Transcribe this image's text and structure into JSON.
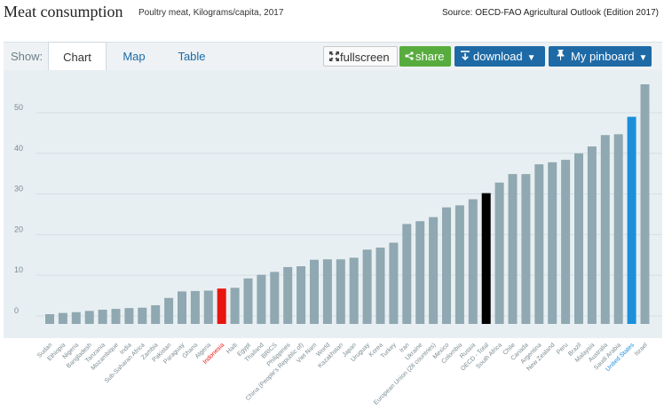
{
  "header": {
    "title": "Meat consumption",
    "subtitle": "Poultry meat, Kilograms/capita, 2017",
    "source": "Source: OECD-FAO Agricultural Outlook (Edition 2017)"
  },
  "toolbar": {
    "show_label": "Show:",
    "tabs": [
      {
        "label": "Chart",
        "active": true
      },
      {
        "label": "Map",
        "active": false
      },
      {
        "label": "Table",
        "active": false
      }
    ],
    "fullscreen_label": "fullscreen",
    "share_label": "share",
    "download_label": "download",
    "pinboard_label": "My pinboard",
    "icons": {
      "fullscreen": "expand-arrows-icon",
      "share": "share-nodes-icon",
      "download": "download-arrow-icon",
      "pinboard": "pushpin-icon",
      "dropdown": "caret-down-icon"
    }
  },
  "colors": {
    "bar": "#8fa8b1",
    "highlight_red": "#e8140f",
    "highlight_black": "#000000",
    "highlight_blue": "#1c8fd9",
    "plot_background": "#e8eff2",
    "label": "#7a8a92",
    "label_red": "#e8140f",
    "label_blue": "#1c8fd9",
    "brand_blue": "#1e6aa6",
    "share_green": "#58ac3e"
  },
  "chart_data": {
    "type": "bar",
    "title": "Meat consumption",
    "subtitle": "Poultry meat, Kilograms/capita, 2017",
    "ylim": [
      -2,
      57
    ],
    "yticks": [
      0,
      10,
      20,
      30,
      40,
      50
    ],
    "grid": true,
    "categories": [
      "Sudan",
      "Ethiopia",
      "Nigeria",
      "Bangladesh",
      "Tanzania",
      "Mozambique",
      "India",
      "Sub-Saharan Africa",
      "Zambia",
      "Pakistan",
      "Paraguay",
      "Ghana",
      "Algeria",
      "Indonesia",
      "Haiti",
      "Egypt",
      "Thailand",
      "BRICS",
      "Philippines",
      "China (People's Republic of)",
      "Viet Nam",
      "World",
      "Kazakhstan",
      "Japan",
      "Uruguay",
      "Korea",
      "Turkey",
      "Iran",
      "Ukraine",
      "European Union (28 countries)",
      "Mexico",
      "Colombia",
      "Russia",
      "OECD - Total",
      "South Africa",
      "Chile",
      "Canada",
      "Argentina",
      "New Zealand",
      "Peru",
      "Brazil",
      "Malaysia",
      "Australia",
      "Saudi Arabia",
      "United States",
      "Israel"
    ],
    "values": [
      0.4,
      0.7,
      0.9,
      1.2,
      1.5,
      1.7,
      1.9,
      2.0,
      2.6,
      4.4,
      6.0,
      6.1,
      6.2,
      6.7,
      6.9,
      9.2,
      10.1,
      10.8,
      12.0,
      12.2,
      13.8,
      13.9,
      13.9,
      14.3,
      16.3,
      16.8,
      18.0,
      22.6,
      23.3,
      24.3,
      26.7,
      27.2,
      28.7,
      30.2,
      32.8,
      34.9,
      34.9,
      37.3,
      37.8,
      38.4,
      40.0,
      41.7,
      44.5,
      44.7,
      49.0,
      57.0
    ],
    "highlights": {
      "Indonesia": "highlight_red",
      "OECD - Total": "highlight_black",
      "United States": "highlight_blue"
    }
  }
}
